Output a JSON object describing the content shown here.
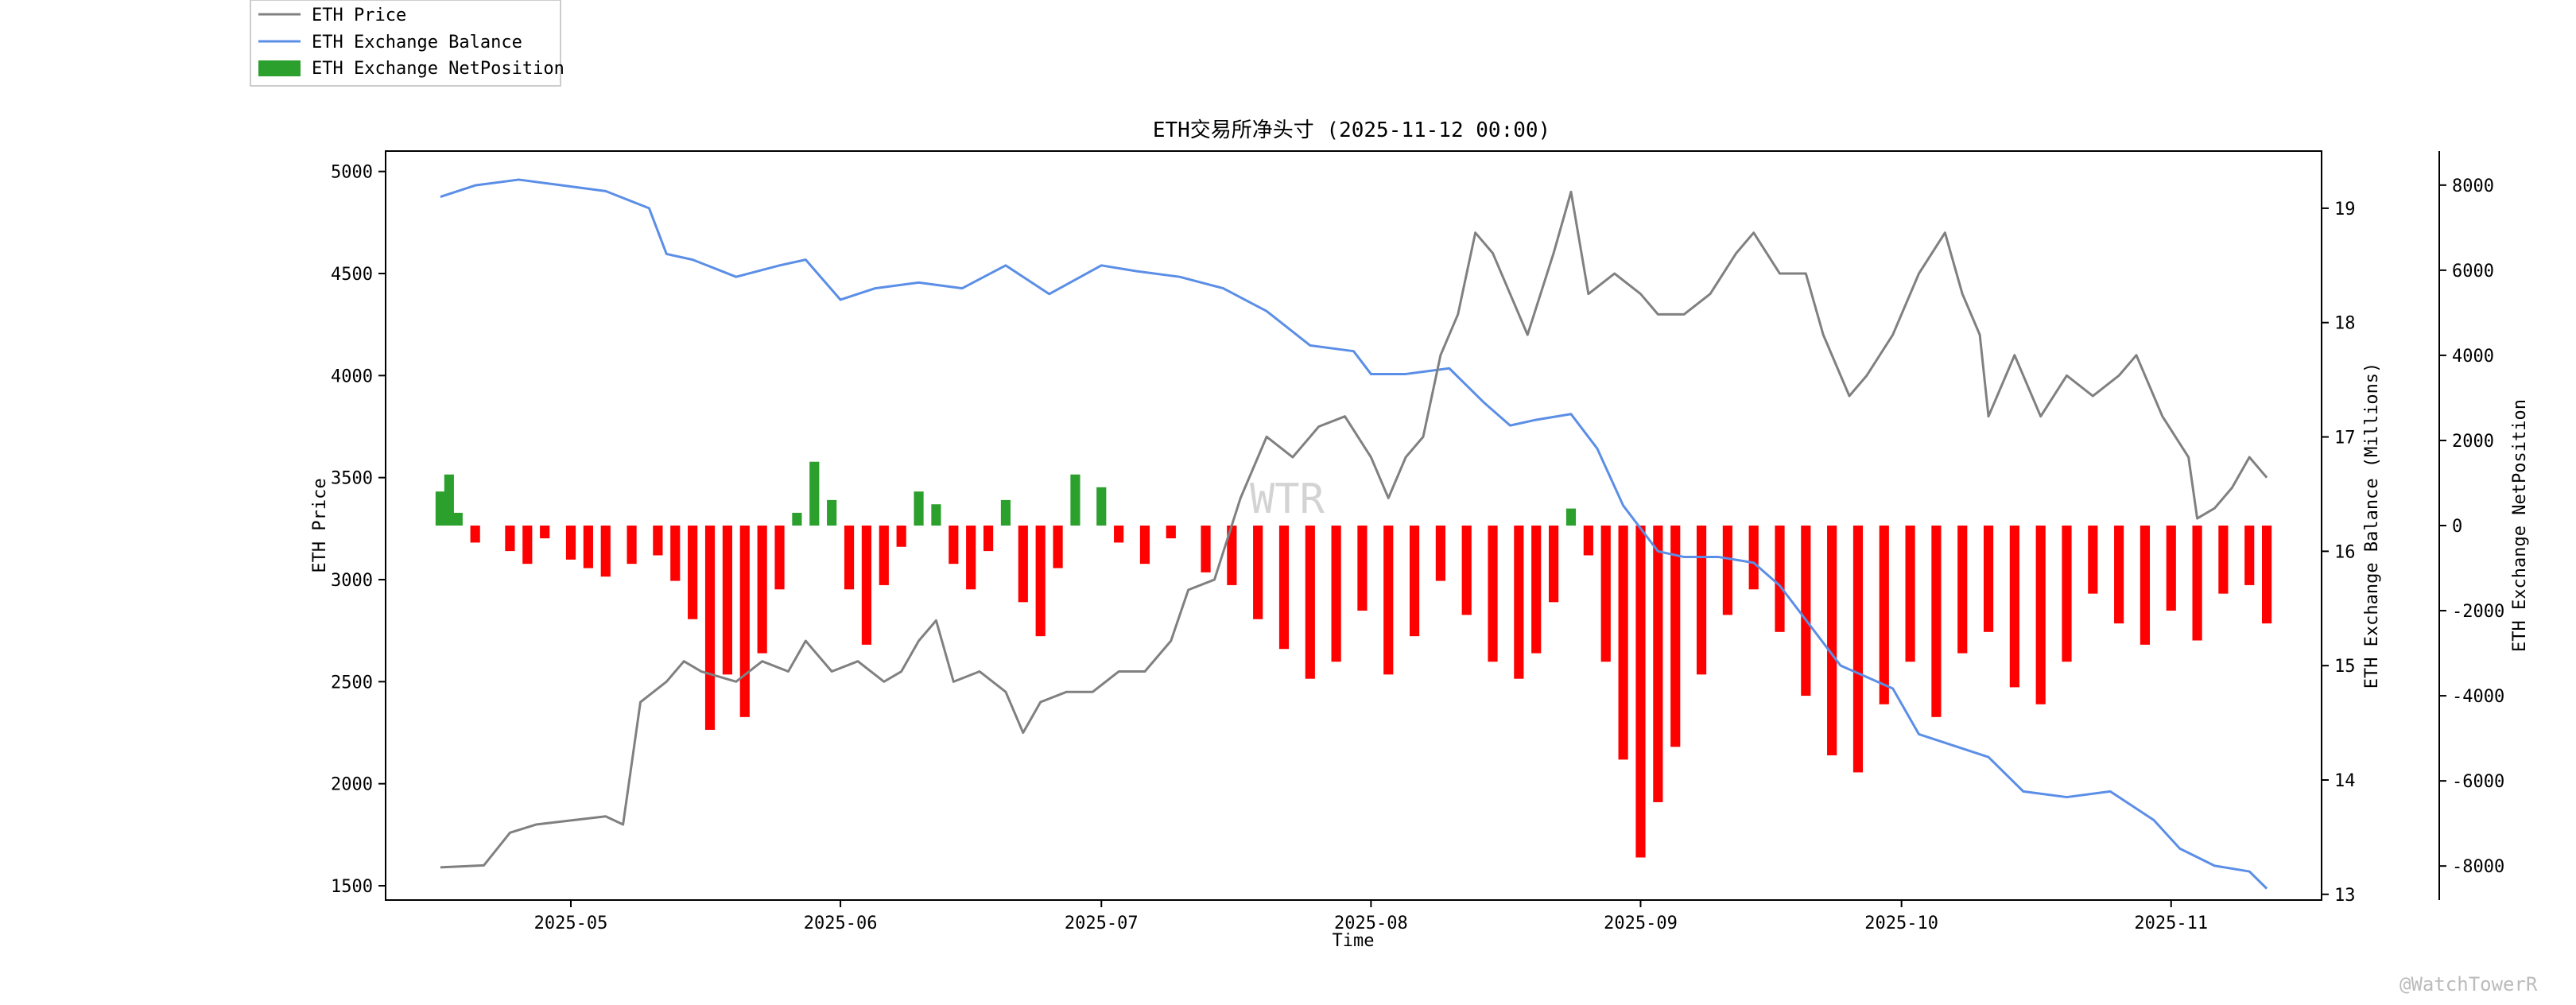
{
  "chart_data": {
    "type": "line",
    "title": "ETH交易所净头寸 (2025-11-12 00:00)",
    "xlabel": "Time",
    "x_start": "2025-04-16",
    "x_end": "2025-11-12",
    "x_tick_labels": [
      "2025-05",
      "2025-06",
      "2025-07",
      "2025-08",
      "2025-09",
      "2025-10",
      "2025-11"
    ],
    "x_tick_dates": [
      "2025-05-01",
      "2025-06-01",
      "2025-07-01",
      "2025-08-01",
      "2025-09-01",
      "2025-10-01",
      "2025-11-01"
    ],
    "y_left": {
      "label": "ETH Price",
      "lim": [
        1430,
        5100
      ],
      "ticks": [
        1500,
        2000,
        2500,
        3000,
        3500,
        4000,
        4500,
        5000
      ]
    },
    "y_right1": {
      "label": "ETH Exchange Balance (Millions)",
      "lim": [
        12.95,
        19.5
      ],
      "ticks": [
        13,
        14,
        15,
        16,
        17,
        18,
        19
      ]
    },
    "y_right2": {
      "label": "ETH Exchange NetPosition",
      "lim": [
        -8800,
        8800
      ],
      "ticks": [
        8000,
        6000,
        4000,
        2000,
        0,
        -2000,
        -4000,
        -6000,
        -8000
      ]
    },
    "legend": {
      "placement": "top-left, outside the plot"
    },
    "grid": false,
    "series": [
      {
        "name": "ETH Price",
        "axis": "left",
        "color": "#808080",
        "points": [
          [
            "2025-04-16",
            1590
          ],
          [
            "2025-04-21",
            1600
          ],
          [
            "2025-04-24",
            1760
          ],
          [
            "2025-04-27",
            1800
          ],
          [
            "2025-05-01",
            1820
          ],
          [
            "2025-05-05",
            1840
          ],
          [
            "2025-05-07",
            1800
          ],
          [
            "2025-05-09",
            2400
          ],
          [
            "2025-05-12",
            2500
          ],
          [
            "2025-05-14",
            2600
          ],
          [
            "2025-05-16",
            2550
          ],
          [
            "2025-05-20",
            2500
          ],
          [
            "2025-05-23",
            2600
          ],
          [
            "2025-05-26",
            2550
          ],
          [
            "2025-05-28",
            2700
          ],
          [
            "2025-05-31",
            2550
          ],
          [
            "2025-06-03",
            2600
          ],
          [
            "2025-06-06",
            2500
          ],
          [
            "2025-06-08",
            2550
          ],
          [
            "2025-06-10",
            2700
          ],
          [
            "2025-06-12",
            2800
          ],
          [
            "2025-06-14",
            2500
          ],
          [
            "2025-06-17",
            2550
          ],
          [
            "2025-06-20",
            2450
          ],
          [
            "2025-06-22",
            2250
          ],
          [
            "2025-06-24",
            2400
          ],
          [
            "2025-06-27",
            2450
          ],
          [
            "2025-06-30",
            2450
          ],
          [
            "2025-07-03",
            2550
          ],
          [
            "2025-07-06",
            2550
          ],
          [
            "2025-07-09",
            2700
          ],
          [
            "2025-07-11",
            2950
          ],
          [
            "2025-07-14",
            3000
          ],
          [
            "2025-07-17",
            3400
          ],
          [
            "2025-07-20",
            3700
          ],
          [
            "2025-07-23",
            3600
          ],
          [
            "2025-07-26",
            3750
          ],
          [
            "2025-07-29",
            3800
          ],
          [
            "2025-08-01",
            3600
          ],
          [
            "2025-08-03",
            3400
          ],
          [
            "2025-08-05",
            3600
          ],
          [
            "2025-08-07",
            3700
          ],
          [
            "2025-08-09",
            4100
          ],
          [
            "2025-08-11",
            4300
          ],
          [
            "2025-08-13",
            4700
          ],
          [
            "2025-08-15",
            4600
          ],
          [
            "2025-08-17",
            4400
          ],
          [
            "2025-08-19",
            4200
          ],
          [
            "2025-08-22",
            4600
          ],
          [
            "2025-08-24",
            4900
          ],
          [
            "2025-08-26",
            4400
          ],
          [
            "2025-08-29",
            4500
          ],
          [
            "2025-09-01",
            4400
          ],
          [
            "2025-09-03",
            4300
          ],
          [
            "2025-09-06",
            4300
          ],
          [
            "2025-09-09",
            4400
          ],
          [
            "2025-09-12",
            4600
          ],
          [
            "2025-09-14",
            4700
          ],
          [
            "2025-09-17",
            4500
          ],
          [
            "2025-09-20",
            4500
          ],
          [
            "2025-09-22",
            4200
          ],
          [
            "2025-09-25",
            3900
          ],
          [
            "2025-09-27",
            4000
          ],
          [
            "2025-09-30",
            4200
          ],
          [
            "2025-10-03",
            4500
          ],
          [
            "2025-10-06",
            4700
          ],
          [
            "2025-10-08",
            4400
          ],
          [
            "2025-10-10",
            4200
          ],
          [
            "2025-10-11",
            3800
          ],
          [
            "2025-10-14",
            4100
          ],
          [
            "2025-10-17",
            3800
          ],
          [
            "2025-10-20",
            4000
          ],
          [
            "2025-10-23",
            3900
          ],
          [
            "2025-10-26",
            4000
          ],
          [
            "2025-10-28",
            4100
          ],
          [
            "2025-10-31",
            3800
          ],
          [
            "2025-11-03",
            3600
          ],
          [
            "2025-11-04",
            3300
          ],
          [
            "2025-11-06",
            3350
          ],
          [
            "2025-11-08",
            3450
          ],
          [
            "2025-11-10",
            3600
          ],
          [
            "2025-11-12",
            3500
          ]
        ]
      },
      {
        "name": "ETH Exchange Balance",
        "axis": "right1",
        "color": "#5b8ee6",
        "points": [
          [
            "2025-04-16",
            19.1
          ],
          [
            "2025-04-20",
            19.2
          ],
          [
            "2025-04-25",
            19.25
          ],
          [
            "2025-04-30",
            19.2
          ],
          [
            "2025-05-05",
            19.15
          ],
          [
            "2025-05-10",
            19.0
          ],
          [
            "2025-05-12",
            18.6
          ],
          [
            "2025-05-15",
            18.55
          ],
          [
            "2025-05-20",
            18.4
          ],
          [
            "2025-05-25",
            18.5
          ],
          [
            "2025-05-28",
            18.55
          ],
          [
            "2025-06-01",
            18.2
          ],
          [
            "2025-06-05",
            18.3
          ],
          [
            "2025-06-10",
            18.35
          ],
          [
            "2025-06-15",
            18.3
          ],
          [
            "2025-06-20",
            18.5
          ],
          [
            "2025-06-25",
            18.25
          ],
          [
            "2025-07-01",
            18.5
          ],
          [
            "2025-07-05",
            18.45
          ],
          [
            "2025-07-10",
            18.4
          ],
          [
            "2025-07-15",
            18.3
          ],
          [
            "2025-07-20",
            18.1
          ],
          [
            "2025-07-25",
            17.8
          ],
          [
            "2025-07-30",
            17.75
          ],
          [
            "2025-08-01",
            17.55
          ],
          [
            "2025-08-05",
            17.55
          ],
          [
            "2025-08-10",
            17.6
          ],
          [
            "2025-08-14",
            17.3
          ],
          [
            "2025-08-17",
            17.1
          ],
          [
            "2025-08-20",
            17.15
          ],
          [
            "2025-08-24",
            17.2
          ],
          [
            "2025-08-27",
            16.9
          ],
          [
            "2025-08-30",
            16.4
          ],
          [
            "2025-09-03",
            16.0
          ],
          [
            "2025-09-06",
            15.95
          ],
          [
            "2025-09-10",
            15.95
          ],
          [
            "2025-09-14",
            15.9
          ],
          [
            "2025-09-17",
            15.7
          ],
          [
            "2025-09-20",
            15.4
          ],
          [
            "2025-09-24",
            15.0
          ],
          [
            "2025-09-27",
            14.9
          ],
          [
            "2025-09-30",
            14.8
          ],
          [
            "2025-10-03",
            14.4
          ],
          [
            "2025-10-07",
            14.3
          ],
          [
            "2025-10-11",
            14.2
          ],
          [
            "2025-10-15",
            13.9
          ],
          [
            "2025-10-20",
            13.85
          ],
          [
            "2025-10-25",
            13.9
          ],
          [
            "2025-10-30",
            13.65
          ],
          [
            "2025-11-02",
            13.4
          ],
          [
            "2025-11-06",
            13.25
          ],
          [
            "2025-11-10",
            13.2
          ],
          [
            "2025-11-12",
            13.05
          ]
        ]
      },
      {
        "name": "ETH Exchange NetPosition",
        "axis": "right2",
        "type": "bar",
        "color_positive": "#2ca02c",
        "color_negative": "#ff0000",
        "points": [
          [
            "2025-04-16",
            800
          ],
          [
            "2025-04-17",
            1200
          ],
          [
            "2025-04-18",
            300
          ],
          [
            "2025-04-20",
            -400
          ],
          [
            "2025-04-24",
            -600
          ],
          [
            "2025-04-26",
            -900
          ],
          [
            "2025-04-28",
            -300
          ],
          [
            "2025-05-01",
            -800
          ],
          [
            "2025-05-03",
            -1000
          ],
          [
            "2025-05-05",
            -1200
          ],
          [
            "2025-05-08",
            -900
          ],
          [
            "2025-05-11",
            -700
          ],
          [
            "2025-05-13",
            -1300
          ],
          [
            "2025-05-15",
            -2200
          ],
          [
            "2025-05-17",
            -4800
          ],
          [
            "2025-05-19",
            -3500
          ],
          [
            "2025-05-21",
            -4500
          ],
          [
            "2025-05-23",
            -3000
          ],
          [
            "2025-05-25",
            -1500
          ],
          [
            "2025-05-27",
            300
          ],
          [
            "2025-05-29",
            1500
          ],
          [
            "2025-05-31",
            600
          ],
          [
            "2025-06-02",
            -1500
          ],
          [
            "2025-06-04",
            -2800
          ],
          [
            "2025-06-06",
            -1400
          ],
          [
            "2025-06-08",
            -500
          ],
          [
            "2025-06-10",
            800
          ],
          [
            "2025-06-12",
            500
          ],
          [
            "2025-06-14",
            -900
          ],
          [
            "2025-06-16",
            -1500
          ],
          [
            "2025-06-18",
            -600
          ],
          [
            "2025-06-20",
            600
          ],
          [
            "2025-06-22",
            -1800
          ],
          [
            "2025-06-24",
            -2600
          ],
          [
            "2025-06-26",
            -1000
          ],
          [
            "2025-06-28",
            1200
          ],
          [
            "2025-07-01",
            900
          ],
          [
            "2025-07-03",
            -400
          ],
          [
            "2025-07-06",
            -900
          ],
          [
            "2025-07-09",
            -300
          ],
          [
            "2025-07-13",
            -1100
          ],
          [
            "2025-07-16",
            -1400
          ],
          [
            "2025-07-19",
            -2200
          ],
          [
            "2025-07-22",
            -2900
          ],
          [
            "2025-07-25",
            -3600
          ],
          [
            "2025-07-28",
            -3200
          ],
          [
            "2025-07-31",
            -2000
          ],
          [
            "2025-08-03",
            -3500
          ],
          [
            "2025-08-06",
            -2600
          ],
          [
            "2025-08-09",
            -1300
          ],
          [
            "2025-08-12",
            -2100
          ],
          [
            "2025-08-15",
            -3200
          ],
          [
            "2025-08-18",
            -3600
          ],
          [
            "2025-08-20",
            -3000
          ],
          [
            "2025-08-22",
            -1800
          ],
          [
            "2025-08-24",
            400
          ],
          [
            "2025-08-26",
            -700
          ],
          [
            "2025-08-28",
            -3200
          ],
          [
            "2025-08-30",
            -5500
          ],
          [
            "2025-09-01",
            -7800
          ],
          [
            "2025-09-03",
            -6500
          ],
          [
            "2025-09-05",
            -5200
          ],
          [
            "2025-09-08",
            -3500
          ],
          [
            "2025-09-11",
            -2100
          ],
          [
            "2025-09-14",
            -1500
          ],
          [
            "2025-09-17",
            -2500
          ],
          [
            "2025-09-20",
            -4000
          ],
          [
            "2025-09-23",
            -5400
          ],
          [
            "2025-09-26",
            -5800
          ],
          [
            "2025-09-29",
            -4200
          ],
          [
            "2025-10-02",
            -3200
          ],
          [
            "2025-10-05",
            -4500
          ],
          [
            "2025-10-08",
            -3000
          ],
          [
            "2025-10-11",
            -2500
          ],
          [
            "2025-10-14",
            -3800
          ],
          [
            "2025-10-17",
            -4200
          ],
          [
            "2025-10-20",
            -3200
          ],
          [
            "2025-10-23",
            -1600
          ],
          [
            "2025-10-26",
            -2300
          ],
          [
            "2025-10-29",
            -2800
          ],
          [
            "2025-11-01",
            -2000
          ],
          [
            "2025-11-04",
            -2700
          ],
          [
            "2025-11-07",
            -1600
          ],
          [
            "2025-11-10",
            -1400
          ],
          [
            "2025-11-12",
            -2300
          ]
        ]
      }
    ]
  },
  "watermark": "WTR",
  "credit": "@WatchTowerR"
}
